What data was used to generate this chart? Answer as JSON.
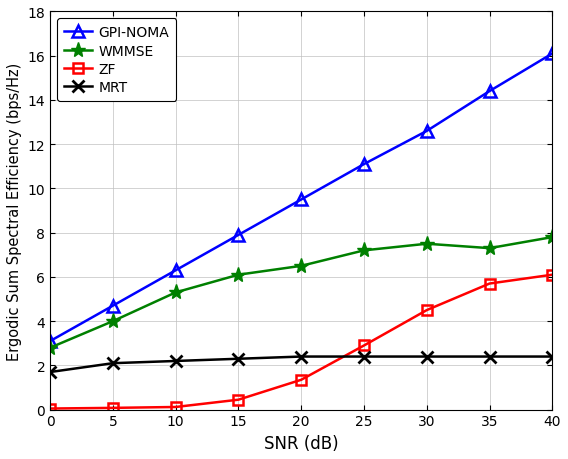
{
  "snr": [
    0,
    5,
    10,
    15,
    20,
    25,
    30,
    35,
    40
  ],
  "gpi_noma": [
    3.1,
    4.7,
    6.3,
    7.9,
    9.5,
    11.1,
    12.6,
    14.4,
    16.1
  ],
  "wmmse": [
    2.8,
    4.0,
    5.3,
    6.1,
    6.5,
    7.2,
    7.5,
    7.3,
    7.8
  ],
  "zf": [
    0.05,
    0.08,
    0.12,
    0.45,
    1.35,
    2.9,
    4.5,
    5.7,
    6.1
  ],
  "mrt": [
    1.7,
    2.1,
    2.2,
    2.3,
    2.4,
    2.4,
    2.4,
    2.4,
    2.4
  ],
  "colors": {
    "gpi_noma": "#0000FF",
    "wmmse": "#008000",
    "zf": "#FF0000",
    "mrt": "#000000"
  },
  "xlabel": "SNR (dB)",
  "ylabel": "Ergodic Sum Spectral Efficiency (bps/Hz)",
  "ylim": [
    0,
    18
  ],
  "xlim": [
    0,
    40
  ],
  "yticks": [
    0,
    2,
    4,
    6,
    8,
    10,
    12,
    14,
    16,
    18
  ],
  "xticks": [
    0,
    5,
    10,
    15,
    20,
    25,
    30,
    35,
    40
  ],
  "legend_labels": [
    "GPI-NOMA",
    "WMMSE",
    "ZF",
    "MRT"
  ],
  "legend_loc": "upper left",
  "linewidth": 1.8,
  "marker_size_triangle": 8,
  "marker_size_star": 11,
  "marker_size_square": 7,
  "marker_size_x": 8
}
